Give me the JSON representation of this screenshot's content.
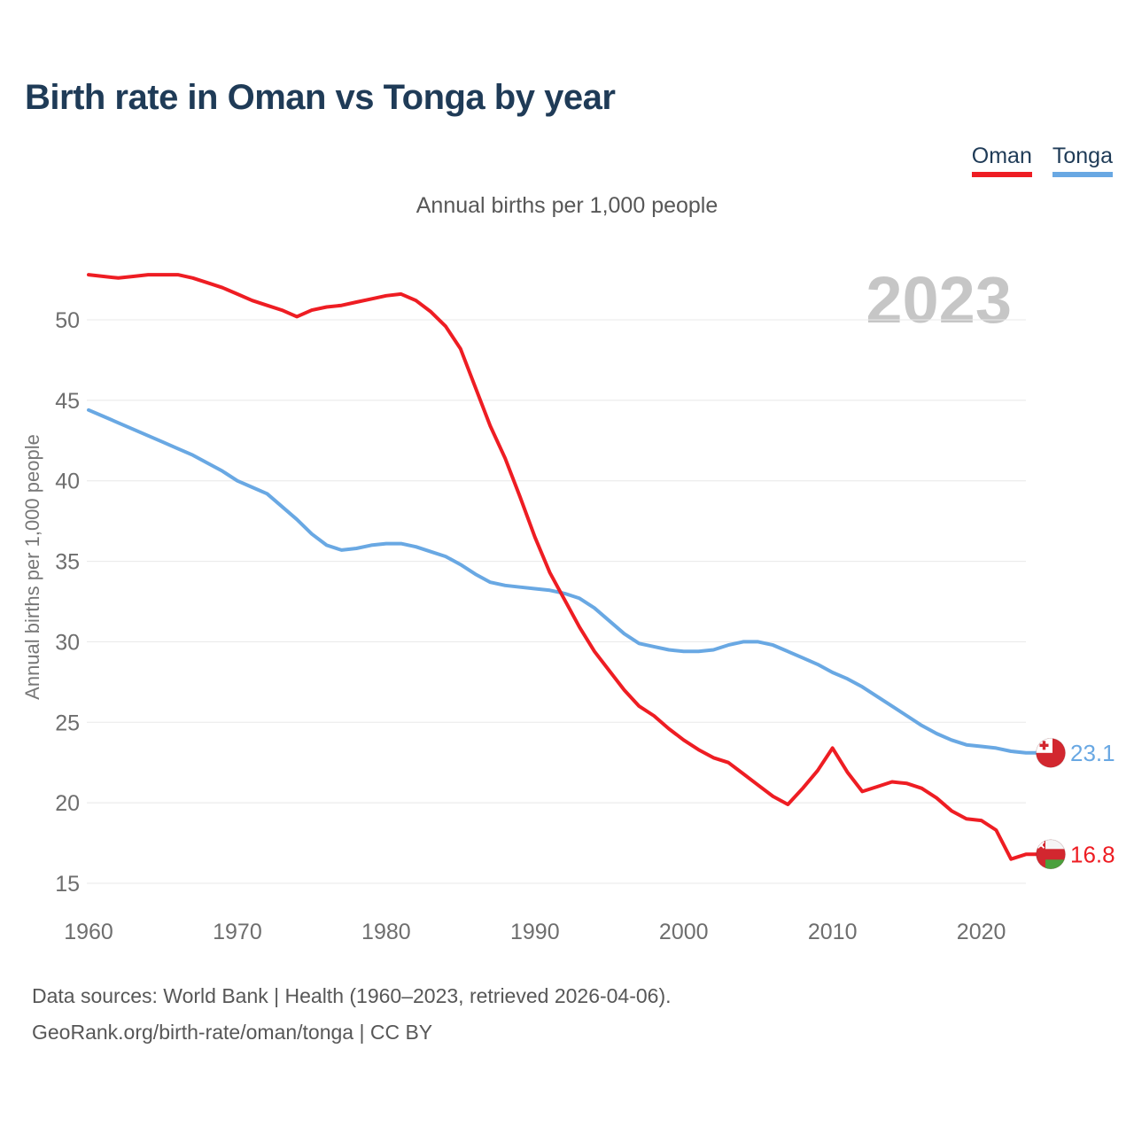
{
  "header": {
    "title": "Birth rate in Oman vs Tonga by year"
  },
  "legend": {
    "items": [
      {
        "label": "Oman",
        "color": "#ee1d23"
      },
      {
        "label": "Tonga",
        "color": "#69a8e3"
      }
    ]
  },
  "subtitle": "Annual births per 1,000 people",
  "watermark": "2023",
  "palette": {
    "title_navy": "#1f3b57",
    "oman_red": "#ee1d23",
    "tonga_blue": "#69a8e3",
    "tick_gray": "#6e6e6e",
    "grid_gray": "#e8e8e8",
    "watermark_gray": "#c6c6c6"
  },
  "icons": {
    "oman_flag": {
      "name": "oman-flag-icon",
      "red": "#d2272f",
      "white": "#f5f5f5",
      "green": "#4aa03c"
    },
    "tonga_flag": {
      "name": "tonga-flag-icon",
      "red": "#d2272f",
      "white": "#ffffff"
    }
  },
  "chart_data": {
    "type": "line",
    "title": "Birth rate in Oman vs Tonga by year",
    "subtitle": "Annual births per 1,000 people",
    "xlabel": "",
    "ylabel": "Annual births per 1,000 people",
    "x_start_year": 1960,
    "x_end_year": 2023,
    "x_ticks": [
      1960,
      1970,
      1980,
      1990,
      2000,
      2010,
      2020
    ],
    "y_ticks": [
      15,
      20,
      25,
      30,
      35,
      40,
      45,
      50
    ],
    "ylim": [
      14.5,
      53.5
    ],
    "grid": "horizontal",
    "legend_position": "top-right",
    "series": [
      {
        "name": "Oman",
        "color": "#ee1d23",
        "flag": "oman_flag",
        "end_label": "16.8",
        "values": [
          52.8,
          52.7,
          52.6,
          52.7,
          52.8,
          52.8,
          52.8,
          52.6,
          52.3,
          52.0,
          51.6,
          51.2,
          50.9,
          50.6,
          50.2,
          50.6,
          50.8,
          50.9,
          51.1,
          51.3,
          51.5,
          51.6,
          51.2,
          50.5,
          49.6,
          48.2,
          45.8,
          43.4,
          41.4,
          39.0,
          36.5,
          34.3,
          32.6,
          30.9,
          29.4,
          28.2,
          27.0,
          26.0,
          25.4,
          24.6,
          23.9,
          23.3,
          22.8,
          22.5,
          21.8,
          21.1,
          20.4,
          19.9,
          20.9,
          22.0,
          23.4,
          21.9,
          20.7,
          21.0,
          21.3,
          21.2,
          20.9,
          20.3,
          19.5,
          19.0,
          18.9,
          18.3,
          16.5,
          16.8
        ]
      },
      {
        "name": "Tonga",
        "color": "#69a8e3",
        "flag": "tonga_flag",
        "end_label": "23.1",
        "values": [
          44.4,
          44.0,
          43.6,
          43.2,
          42.8,
          42.4,
          42.0,
          41.6,
          41.1,
          40.6,
          40.0,
          39.6,
          39.2,
          38.4,
          37.6,
          36.7,
          36.0,
          35.7,
          35.8,
          36.0,
          36.1,
          36.1,
          35.9,
          35.6,
          35.3,
          34.8,
          34.2,
          33.7,
          33.5,
          33.4,
          33.3,
          33.2,
          33.0,
          32.7,
          32.1,
          31.3,
          30.5,
          29.9,
          29.7,
          29.5,
          29.4,
          29.4,
          29.5,
          29.8,
          30.0,
          30.0,
          29.8,
          29.4,
          29.0,
          28.6,
          28.1,
          27.7,
          27.2,
          26.6,
          26.0,
          25.4,
          24.8,
          24.3,
          23.9,
          23.6,
          23.5,
          23.4,
          23.2,
          23.1
        ]
      }
    ]
  },
  "footer": {
    "line1": "Data sources: World Bank | Health (1960–2023, retrieved 2026-04-06).",
    "line2": "GeoRank.org/birth-rate/oman/tonga | CC BY"
  }
}
